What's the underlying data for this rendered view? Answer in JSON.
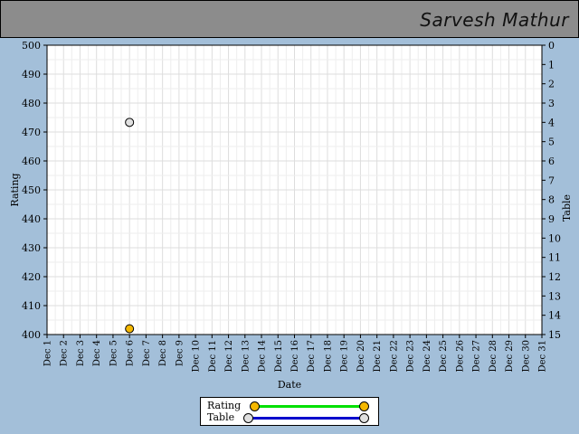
{
  "header": {
    "title": "Sarvesh Mathur"
  },
  "chart_data": {
    "type": "scatter",
    "x": [
      "Dec 1",
      "Dec 2",
      "Dec 3",
      "Dec 4",
      "Dec 5",
      "Dec 6",
      "Dec 7",
      "Dec 8",
      "Dec 9",
      "Dec 10",
      "Dec 11",
      "Dec 12",
      "Dec 13",
      "Dec 14",
      "Dec 15",
      "Dec 16",
      "Dec 17",
      "Dec 18",
      "Dec 19",
      "Dec 20",
      "Dec 21",
      "Dec 22",
      "Dec 23",
      "Dec 24",
      "Dec 25",
      "Dec 26",
      "Dec 27",
      "Dec 28",
      "Dec 29",
      "Dec 30",
      "Dec 31"
    ],
    "xlabel": "Date",
    "ylabel": "Rating",
    "y2label": "Table",
    "ylim": [
      400,
      500
    ],
    "y2lim": [
      0,
      15
    ],
    "y2_inverted": true,
    "yticks": [
      400,
      410,
      420,
      430,
      440,
      450,
      460,
      470,
      480,
      490,
      500
    ],
    "y2ticks": [
      0,
      1,
      2,
      3,
      4,
      5,
      6,
      7,
      8,
      9,
      10,
      11,
      12,
      13,
      14,
      15
    ],
    "grid": true,
    "legend_position": "bottom-center",
    "series": [
      {
        "name": "Rating",
        "axis": "left",
        "color": "#f5b800",
        "line_color": "#00e000",
        "points": [
          {
            "x": "Dec 6",
            "y": 402
          }
        ]
      },
      {
        "name": "Table",
        "axis": "right",
        "color": "#e0e0e0",
        "line_color": "#0000cc",
        "points": [
          {
            "x": "Dec 6",
            "y": 4
          }
        ]
      }
    ]
  }
}
